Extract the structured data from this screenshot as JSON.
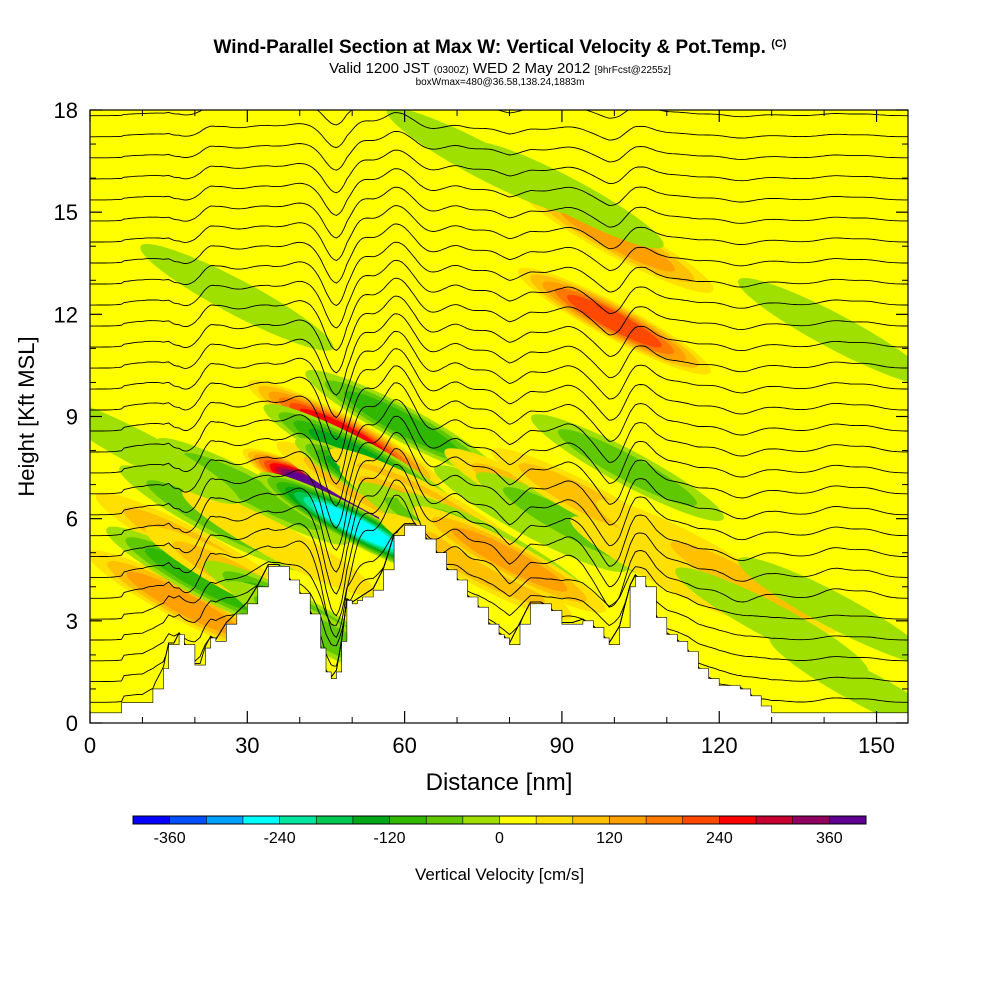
{
  "header": {
    "title": "Wind-Parallel Section at Max W: Vertical Velocity & Pot.Temp.",
    "title_mark": "(C)",
    "valid_prefix": "Valid 1200 JST",
    "valid_utc": "(0300Z)",
    "valid_date": "WED 2 May 2012",
    "forecast": "[9hrFcst@2255z]",
    "box_info": "boxWmax=480@36.58,138.24,1883m"
  },
  "chart_data": {
    "type": "heatmap",
    "xlabel": "Distance [nm]",
    "ylabel": "Height [Kft MSL]",
    "xlim": [
      0,
      156
    ],
    "ylim": [
      0,
      18
    ],
    "x_ticks": [
      "0",
      "30",
      "60",
      "90",
      "120",
      "150"
    ],
    "y_ticks": [
      "0",
      "3",
      "6",
      "9",
      "12",
      "15",
      "18"
    ],
    "colorbar": {
      "label": "Vertical Velocity [cm/s]",
      "range": [
        -400,
        400
      ],
      "tick_labels": [
        "-360",
        "-240",
        "-120",
        "0",
        "120",
        "240",
        "360"
      ],
      "colors": [
        "#0000ff",
        "#0050ff",
        "#00a0ff",
        "#00ffff",
        "#00e8a0",
        "#00c850",
        "#00a818",
        "#30b800",
        "#60c800",
        "#a0e000",
        "#ffff00",
        "#ffe000",
        "#ffc000",
        "#ffa000",
        "#ff7800",
        "#ff4800",
        "#ff0000",
        "#c80030",
        "#900060",
        "#600090"
      ]
    },
    "background_w": 20,
    "terrain": [
      [
        0,
        0.3
      ],
      [
        6,
        0.3
      ],
      [
        6,
        0.6
      ],
      [
        10,
        0.6
      ],
      [
        12,
        1.0
      ],
      [
        14,
        1.6
      ],
      [
        15,
        2.3
      ],
      [
        16,
        2.3
      ],
      [
        17,
        2.6
      ],
      [
        18,
        2.3
      ],
      [
        20,
        1.7
      ],
      [
        21,
        1.7
      ],
      [
        22,
        2.2
      ],
      [
        23,
        2.5
      ],
      [
        24,
        2.4
      ],
      [
        26,
        2.9
      ],
      [
        28,
        3.2
      ],
      [
        30,
        3.5
      ],
      [
        32,
        4.0
      ],
      [
        34,
        4.6
      ],
      [
        36,
        4.6
      ],
      [
        38,
        4.2
      ],
      [
        40,
        3.8
      ],
      [
        42,
        3.2
      ],
      [
        44,
        2.2
      ],
      [
        45,
        1.5
      ],
      [
        46,
        1.3
      ],
      [
        47,
        1.5
      ],
      [
        48,
        2.4
      ],
      [
        49,
        3.6
      ],
      [
        50,
        3.5
      ],
      [
        51,
        3.6
      ],
      [
        52,
        3.7
      ],
      [
        54,
        3.9
      ],
      [
        56,
        4.5
      ],
      [
        58,
        5.5
      ],
      [
        60,
        5.8
      ],
      [
        62,
        5.8
      ],
      [
        64,
        5.4
      ],
      [
        66,
        5.0
      ],
      [
        68,
        4.5
      ],
      [
        70,
        4.2
      ],
      [
        72,
        3.7
      ],
      [
        74,
        3.4
      ],
      [
        76,
        2.9
      ],
      [
        78,
        2.6
      ],
      [
        79,
        2.5
      ],
      [
        80,
        2.3
      ],
      [
        82,
        2.9
      ],
      [
        84,
        3.5
      ],
      [
        86,
        3.5
      ],
      [
        88,
        3.3
      ],
      [
        90,
        2.9
      ],
      [
        92,
        2.9
      ],
      [
        94,
        3.0
      ],
      [
        96,
        2.8
      ],
      [
        98,
        2.5
      ],
      [
        99,
        2.3
      ],
      [
        101,
        2.8
      ],
      [
        103,
        4.0
      ],
      [
        104,
        4.3
      ],
      [
        106,
        4.0
      ],
      [
        108,
        3.1
      ],
      [
        110,
        2.6
      ],
      [
        112,
        2.4
      ],
      [
        114,
        2.1
      ],
      [
        116,
        1.6
      ],
      [
        118,
        1.3
      ],
      [
        120,
        1.1
      ],
      [
        124,
        1.0
      ],
      [
        126,
        0.8
      ],
      [
        128,
        0.5
      ],
      [
        130,
        0.3
      ],
      [
        156,
        0.3
      ]
    ],
    "vertical_velocity_cells": [
      {
        "x": 18,
        "y": 3.5,
        "w": 150
      },
      {
        "x": 19.5,
        "y": 5.2,
        "w": 90
      },
      {
        "x": 21.5,
        "y": 4.2,
        "w": -140
      },
      {
        "x": 24,
        "y": 6.0,
        "w": -90
      },
      {
        "x": 29,
        "y": 4.2,
        "w": 100
      },
      {
        "x": 31,
        "y": 6.8,
        "w": -80
      },
      {
        "x": 36,
        "y": 5.3,
        "w": 70
      },
      {
        "x": 40,
        "y": 3.2,
        "w": -120
      },
      {
        "x": 44.5,
        "y": 2.6,
        "w": -100
      },
      {
        "x": 47.5,
        "y": 6.5,
        "w": 480
      },
      {
        "x": 48.5,
        "y": 8.5,
        "w": 250
      },
      {
        "x": 50.5,
        "y": 5.8,
        "w": -300
      },
      {
        "x": 51.5,
        "y": 7.8,
        "w": -170
      },
      {
        "x": 54,
        "y": 6.7,
        "w": 80
      },
      {
        "x": 57.5,
        "y": 6.8,
        "w": -240
      },
      {
        "x": 59.5,
        "y": 8.8,
        "w": -130
      },
      {
        "x": 64,
        "y": 6.5,
        "w": 100
      },
      {
        "x": 66,
        "y": 6.0,
        "w": 120
      },
      {
        "x": 69.5,
        "y": 5.5,
        "w": -90
      },
      {
        "x": 73.5,
        "y": 4.6,
        "w": 110
      },
      {
        "x": 77,
        "y": 5.2,
        "w": -80
      },
      {
        "x": 80,
        "y": 4.8,
        "w": 150
      },
      {
        "x": 84,
        "y": 6.0,
        "w": -70
      },
      {
        "x": 86,
        "y": 6.5,
        "w": 100
      },
      {
        "x": 92,
        "y": 5.8,
        "w": -80
      },
      {
        "x": 95,
        "y": 6.5,
        "w": 80
      },
      {
        "x": 100,
        "y": 11.8,
        "w": 220
      },
      {
        "x": 100.5,
        "y": 14.2,
        "w": 130
      },
      {
        "x": 102.5,
        "y": 7.5,
        "w": -90
      },
      {
        "x": 110,
        "y": 4.5,
        "w": 60
      },
      {
        "x": 115,
        "y": 5.0,
        "w": 60
      },
      {
        "x": 124,
        "y": 4.2,
        "w": 110
      },
      {
        "x": 130,
        "y": 3.0,
        "w": -40
      },
      {
        "x": 142,
        "y": 3.3,
        "w": -40
      },
      {
        "x": 148,
        "y": 1.0,
        "w": -60
      },
      {
        "x": 142,
        "y": 11.5,
        "w": -40
      },
      {
        "x": 28,
        "y": 12.5,
        "w": -60
      },
      {
        "x": 10,
        "y": 8.0,
        "w": -50
      },
      {
        "x": 75,
        "y": 16.5,
        "w": -60
      },
      {
        "x": 91,
        "y": 15.5,
        "w": -50
      }
    ]
  }
}
